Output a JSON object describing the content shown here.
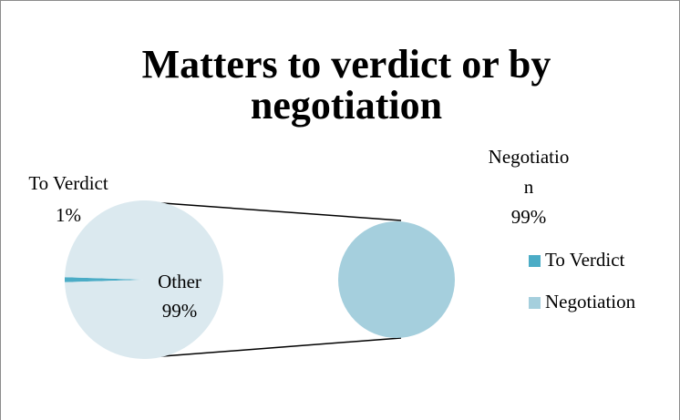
{
  "chart_data": {
    "type": "pie-of-pie",
    "title_lines": [
      "Matters to verdict or by",
      "negotiation"
    ],
    "pies": [
      {
        "categories": [
          "To Verdict",
          "Other"
        ],
        "values": [
          1,
          99
        ],
        "value_labels": [
          "1%",
          "99%"
        ],
        "colors": [
          "#4bacc6",
          "#dbe9ef"
        ]
      },
      {
        "categories": [
          "Negotiation"
        ],
        "values": [
          99
        ],
        "value_labels": [
          "99%"
        ],
        "colors": [
          "#a5cfdd"
        ]
      }
    ],
    "legend": {
      "entries": [
        "To Verdict",
        "Negotiation"
      ],
      "colors": [
        "#4bacc6",
        "#a5cfdd"
      ],
      "position": "right"
    }
  }
}
